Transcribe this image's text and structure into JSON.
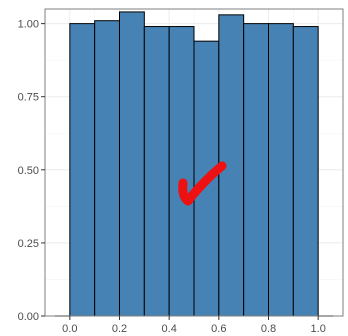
{
  "chart_data": {
    "type": "bar",
    "title": "",
    "xlabel": "",
    "ylabel": "",
    "x_ticks": [
      {
        "value": 0.0,
        "label": "0.0"
      },
      {
        "value": 0.2,
        "label": "0.2"
      },
      {
        "value": 0.4,
        "label": "0.4"
      },
      {
        "value": 0.6,
        "label": "0.6"
      },
      {
        "value": 0.8,
        "label": "0.8"
      },
      {
        "value": 1.0,
        "label": "1.0"
      }
    ],
    "y_ticks": [
      {
        "value": 0.0,
        "label": "0.00"
      },
      {
        "value": 0.25,
        "label": "0.25"
      },
      {
        "value": 0.5,
        "label": "0.50"
      },
      {
        "value": 0.75,
        "label": "0.75"
      },
      {
        "value": 1.0,
        "label": "1.00"
      }
    ],
    "xlim": [
      -0.1,
      1.1
    ],
    "ylim": [
      0,
      1.05
    ],
    "grid": true,
    "bins": [
      {
        "x0": 0.0,
        "x1": 0.1,
        "value": 1.0
      },
      {
        "x0": 0.1,
        "x1": 0.2,
        "value": 1.01
      },
      {
        "x0": 0.2,
        "x1": 0.3,
        "value": 1.04
      },
      {
        "x0": 0.3,
        "x1": 0.4,
        "value": 0.99
      },
      {
        "x0": 0.4,
        "x1": 0.5,
        "value": 0.99
      },
      {
        "x0": 0.5,
        "x1": 0.6,
        "value": 0.94
      },
      {
        "x0": 0.6,
        "x1": 0.7,
        "value": 1.03
      },
      {
        "x0": 0.7,
        "x1": 0.8,
        "value": 1.0
      },
      {
        "x0": 0.8,
        "x1": 0.9,
        "value": 1.0
      },
      {
        "x0": 0.9,
        "x1": 1.0,
        "value": 0.99
      }
    ],
    "baseline_segments": [
      {
        "x0": -0.06,
        "x1": 0.0
      },
      {
        "x0": 1.0,
        "x1": 1.06
      }
    ],
    "annotation": {
      "kind": "checkmark",
      "color": "#ee1111"
    },
    "colors": {
      "bar_fill": "#4682b4",
      "bar_stroke": "#000000",
      "panel_border": "#7f7f7f",
      "grid": "#ebebeb",
      "grid_minor": "#f4f4f4"
    }
  }
}
